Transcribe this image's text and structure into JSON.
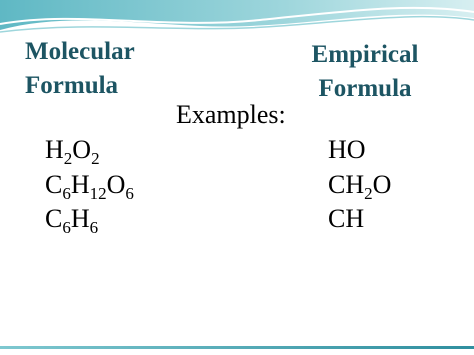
{
  "slide": {
    "headings": {
      "molecular": "Molecular Formula",
      "empirical": "Empirical Formula"
    },
    "examples_label": "Examples:",
    "rows": [
      {
        "molecular": [
          "H",
          "2",
          "O",
          "2"
        ],
        "empirical": [
          "HO"
        ]
      },
      {
        "molecular": [
          "C",
          "6",
          "H",
          "12",
          "O",
          "6"
        ],
        "empirical": [
          "CH",
          "2",
          "O"
        ]
      },
      {
        "molecular": [
          "C",
          "6",
          "H",
          "6"
        ],
        "empirical": [
          "CH"
        ]
      }
    ]
  }
}
